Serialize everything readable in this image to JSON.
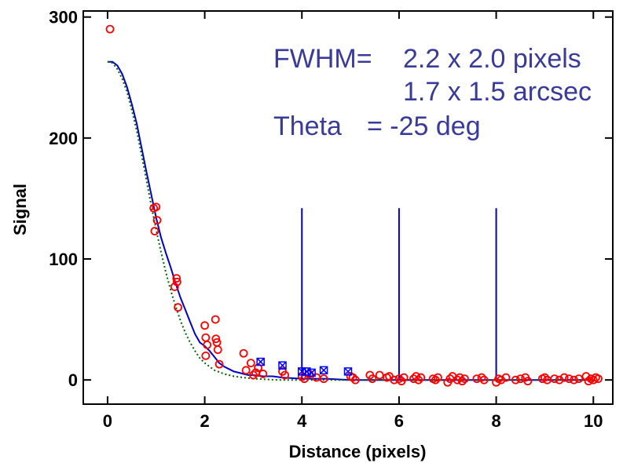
{
  "chart_data": {
    "type": "scatter",
    "xlabel": "Distance (pixels)",
    "ylabel": "Signal",
    "xlim": [
      -0.5,
      10.4
    ],
    "ylim": [
      -20,
      305
    ],
    "x_ticks": [
      0,
      2,
      4,
      6,
      8,
      10
    ],
    "y_ticks": [
      0,
      100,
      200,
      300
    ],
    "x_tick_labels": [
      "0",
      "2",
      "4",
      "6",
      "8",
      "10"
    ],
    "y_tick_labels": [
      "0",
      "100",
      "200",
      "300"
    ],
    "grid": false,
    "colors": {
      "circles": "#ff0000",
      "crosses": "#0000ff",
      "fit_line": "#0000cc",
      "dotted_line": "#006400",
      "annotation": "#3a3a9a"
    },
    "annotations": {
      "fwhm_label": "FWHM=",
      "fwhm_pixels": "2.2 x 2.0 pixels",
      "fwhm_arcsec": "1.7 x 1.5 arcsec",
      "theta_label": "Theta",
      "theta_value": "= -25 deg"
    },
    "vertical_markers": [
      {
        "x": 4,
        "y_top": 142
      },
      {
        "x": 6,
        "y_top": 142
      },
      {
        "x": 8,
        "y_top": 142
      }
    ],
    "series": [
      {
        "kind": "points-circle",
        "points": [
          [
            0.05,
            290
          ],
          [
            0.95,
            142
          ],
          [
            1.0,
            143
          ],
          [
            0.97,
            123
          ],
          [
            1.02,
            132
          ],
          [
            1.38,
            77
          ],
          [
            1.42,
            84
          ],
          [
            1.43,
            81
          ],
          [
            1.45,
            60
          ],
          [
            2.0,
            45
          ],
          [
            2.02,
            35
          ],
          [
            2.05,
            29
          ],
          [
            2.02,
            20
          ],
          [
            2.22,
            50
          ],
          [
            2.23,
            34
          ],
          [
            2.25,
            31
          ],
          [
            2.27,
            25
          ],
          [
            2.3,
            13
          ],
          [
            2.8,
            22
          ],
          [
            2.85,
            8
          ],
          [
            2.95,
            14
          ],
          [
            3.0,
            4
          ],
          [
            3.05,
            6
          ],
          [
            3.1,
            10
          ],
          [
            3.2,
            5
          ],
          [
            3.6,
            7
          ],
          [
            3.65,
            4
          ],
          [
            4.0,
            3
          ],
          [
            4.05,
            1
          ],
          [
            4.15,
            5
          ],
          [
            4.3,
            2
          ],
          [
            4.45,
            1
          ],
          [
            5.0,
            3
          ],
          [
            5.05,
            2
          ],
          [
            5.1,
            0
          ],
          [
            5.4,
            4
          ],
          [
            5.45,
            1
          ],
          [
            5.6,
            4
          ],
          [
            5.75,
            2
          ],
          [
            5.8,
            3
          ],
          [
            5.9,
            0
          ],
          [
            6.0,
            1
          ],
          [
            6.05,
            -1
          ],
          [
            6.1,
            2
          ],
          [
            6.3,
            1
          ],
          [
            6.35,
            3
          ],
          [
            6.4,
            0
          ],
          [
            6.45,
            2
          ],
          [
            6.7,
            1
          ],
          [
            6.75,
            0
          ],
          [
            6.8,
            2
          ],
          [
            7.0,
            -2
          ],
          [
            7.05,
            1
          ],
          [
            7.1,
            3
          ],
          [
            7.2,
            0
          ],
          [
            7.25,
            2
          ],
          [
            7.3,
            -1
          ],
          [
            7.35,
            1
          ],
          [
            7.6,
            1
          ],
          [
            7.7,
            2
          ],
          [
            7.75,
            0
          ],
          [
            8.0,
            -2
          ],
          [
            8.05,
            1
          ],
          [
            8.1,
            0
          ],
          [
            8.2,
            2
          ],
          [
            8.4,
            0
          ],
          [
            8.5,
            1
          ],
          [
            8.6,
            2
          ],
          [
            8.65,
            -1
          ],
          [
            8.95,
            1
          ],
          [
            9.0,
            2
          ],
          [
            9.05,
            0
          ],
          [
            9.2,
            1
          ],
          [
            9.3,
            0
          ],
          [
            9.4,
            2
          ],
          [
            9.5,
            1
          ],
          [
            9.6,
            0
          ],
          [
            9.7,
            1
          ],
          [
            9.85,
            3
          ],
          [
            9.9,
            -1
          ],
          [
            9.95,
            1
          ],
          [
            10.0,
            0
          ],
          [
            10.05,
            2
          ],
          [
            10.1,
            1
          ]
        ]
      },
      {
        "kind": "points-cross",
        "points": [
          [
            3.15,
            15
          ],
          [
            3.6,
            12
          ],
          [
            4.0,
            7
          ],
          [
            4.1,
            7
          ],
          [
            4.2,
            6
          ],
          [
            4.45,
            8
          ],
          [
            4.95,
            7
          ]
        ]
      },
      {
        "kind": "line-solid",
        "points": [
          [
            0.0,
            263
          ],
          [
            0.1,
            263
          ],
          [
            0.2,
            260
          ],
          [
            0.3,
            253
          ],
          [
            0.4,
            242
          ],
          [
            0.5,
            228
          ],
          [
            0.6,
            212
          ],
          [
            0.7,
            192
          ],
          [
            0.8,
            172
          ],
          [
            0.9,
            153
          ],
          [
            1.0,
            134
          ],
          [
            1.1,
            118
          ],
          [
            1.2,
            105
          ],
          [
            1.3,
            93
          ],
          [
            1.4,
            80
          ],
          [
            1.5,
            68
          ],
          [
            1.6,
            58
          ],
          [
            1.7,
            48
          ],
          [
            1.8,
            38
          ],
          [
            1.9,
            31
          ],
          [
            2.0,
            28
          ],
          [
            2.1,
            24
          ],
          [
            2.2,
            19
          ],
          [
            2.3,
            14
          ],
          [
            2.4,
            11
          ],
          [
            2.5,
            9
          ],
          [
            2.6,
            7
          ],
          [
            2.7,
            6
          ],
          [
            2.8,
            5
          ],
          [
            2.9,
            4
          ],
          [
            3.0,
            4
          ],
          [
            3.2,
            3
          ],
          [
            3.4,
            3
          ],
          [
            3.6,
            2
          ],
          [
            4.0,
            1
          ],
          [
            4.5,
            1
          ],
          [
            5.0,
            0
          ],
          [
            6.0,
            0
          ],
          [
            7.0,
            0
          ],
          [
            8.0,
            0
          ],
          [
            9.0,
            0
          ],
          [
            10.0,
            0
          ]
        ]
      },
      {
        "kind": "line-dotted",
        "points": [
          [
            0.0,
            263
          ],
          [
            0.1,
            262
          ],
          [
            0.2,
            257
          ],
          [
            0.3,
            249
          ],
          [
            0.4,
            238
          ],
          [
            0.5,
            223
          ],
          [
            0.6,
            206
          ],
          [
            0.7,
            186
          ],
          [
            0.8,
            165
          ],
          [
            0.9,
            144
          ],
          [
            1.0,
            124
          ],
          [
            1.1,
            106
          ],
          [
            1.2,
            89
          ],
          [
            1.3,
            74
          ],
          [
            1.4,
            61
          ],
          [
            1.5,
            49
          ],
          [
            1.6,
            39
          ],
          [
            1.7,
            31
          ],
          [
            1.8,
            24
          ],
          [
            1.9,
            18
          ],
          [
            2.0,
            14
          ],
          [
            2.2,
            8
          ],
          [
            2.4,
            5
          ],
          [
            2.6,
            3
          ],
          [
            2.8,
            2
          ],
          [
            3.0,
            1
          ],
          [
            3.5,
            0
          ],
          [
            4.0,
            0
          ],
          [
            10.0,
            0
          ]
        ]
      }
    ]
  }
}
